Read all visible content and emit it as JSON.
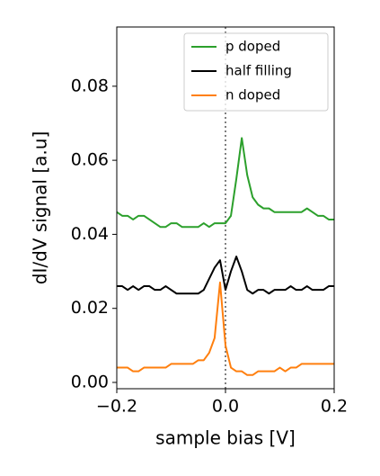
{
  "chart_data": {
    "type": "line",
    "xlabel": "sample bias [V]",
    "ylabel": "dI/dV signal [a.u]",
    "x": [
      -0.2,
      -0.19,
      -0.18,
      -0.17,
      -0.16,
      -0.15,
      -0.14,
      -0.13,
      -0.12,
      -0.11,
      -0.1,
      -0.09,
      -0.08,
      -0.07,
      -0.06,
      -0.05,
      -0.04,
      -0.03,
      -0.02,
      -0.01,
      0,
      0.01,
      0.02,
      0.03,
      0.04,
      0.05,
      0.06,
      0.07,
      0.08,
      0.09,
      0.1,
      0.11,
      0.12,
      0.13,
      0.14,
      0.15,
      0.16,
      0.17,
      0.18,
      0.19,
      0.2
    ],
    "series": [
      {
        "name": "p doped",
        "color": "#2ca02c",
        "values": [
          0.046,
          0.045,
          0.045,
          0.044,
          0.045,
          0.045,
          0.044,
          0.043,
          0.042,
          0.042,
          0.043,
          0.043,
          0.042,
          0.042,
          0.042,
          0.042,
          0.043,
          0.042,
          0.043,
          0.043,
          0.043,
          0.045,
          0.055,
          0.066,
          0.056,
          0.05,
          0.048,
          0.047,
          0.047,
          0.046,
          0.046,
          0.046,
          0.046,
          0.046,
          0.046,
          0.047,
          0.046,
          0.045,
          0.045,
          0.044,
          0.044
        ]
      },
      {
        "name": "half filling",
        "color": "#000000",
        "values": [
          0.026,
          0.026,
          0.025,
          0.026,
          0.025,
          0.026,
          0.026,
          0.025,
          0.025,
          0.026,
          0.025,
          0.024,
          0.024,
          0.024,
          0.024,
          0.024,
          0.025,
          0.028,
          0.031,
          0.033,
          0.025,
          0.03,
          0.034,
          0.03,
          0.025,
          0.024,
          0.025,
          0.025,
          0.024,
          0.025,
          0.025,
          0.025,
          0.026,
          0.025,
          0.025,
          0.026,
          0.025,
          0.025,
          0.025,
          0.026,
          0.026
        ]
      },
      {
        "name": "n doped",
        "color": "#ff7f0e",
        "values": [
          0.004,
          0.004,
          0.004,
          0.003,
          0.003,
          0.004,
          0.004,
          0.004,
          0.004,
          0.004,
          0.005,
          0.005,
          0.005,
          0.005,
          0.005,
          0.006,
          0.006,
          0.008,
          0.012,
          0.027,
          0.01,
          0.004,
          0.003,
          0.003,
          0.002,
          0.002,
          0.003,
          0.003,
          0.003,
          0.003,
          0.004,
          0.003,
          0.004,
          0.004,
          0.005,
          0.005,
          0.005,
          0.005,
          0.005,
          0.005,
          0.005
        ]
      }
    ],
    "xlim": [
      -0.2,
      0.2
    ],
    "ylim": [
      -0.0017,
      0.096
    ],
    "xticks": [
      {
        "value": -0.2,
        "label": "−0.2"
      },
      {
        "value": 0,
        "label": "0.0"
      },
      0.2
    ],
    "yticks": [
      {
        "value": 0,
        "label": "0.00"
      },
      0.02,
      0.04,
      0.06,
      0.08
    ],
    "vline_x": 0,
    "vline_color": "#808080",
    "legend": "upper right"
  }
}
